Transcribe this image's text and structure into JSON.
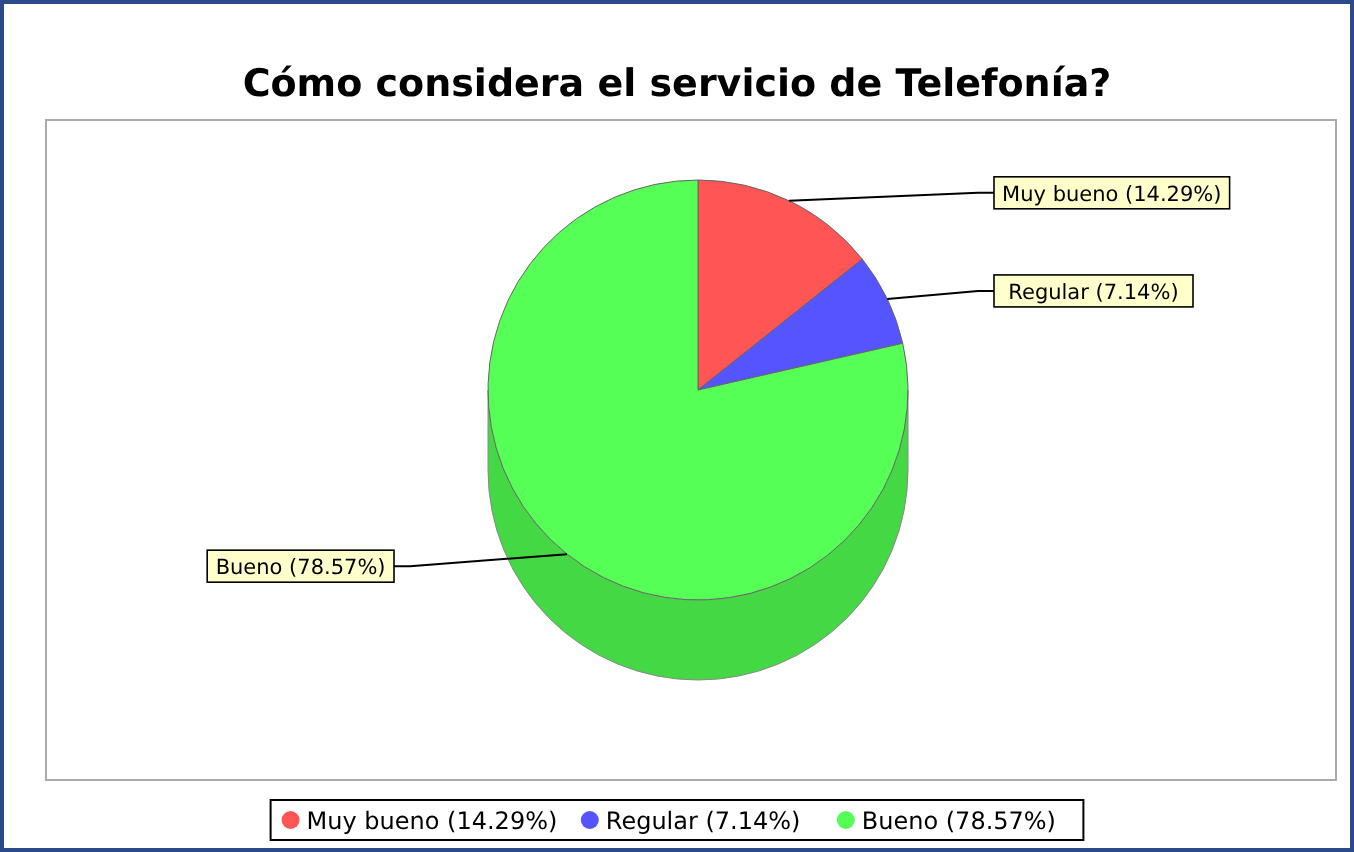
{
  "chart_data": {
    "type": "pie",
    "title": "Cómo considera el servicio de Telefonía?",
    "categories": [
      "Muy bueno (14.29%)",
      "Regular (7.14%)",
      "Bueno (78.57%)"
    ],
    "values": [
      14.29,
      7.14,
      78.57
    ],
    "colors": [
      "#ff5555",
      "#5555ff",
      "#55ff55"
    ],
    "legend": "bottom"
  }
}
